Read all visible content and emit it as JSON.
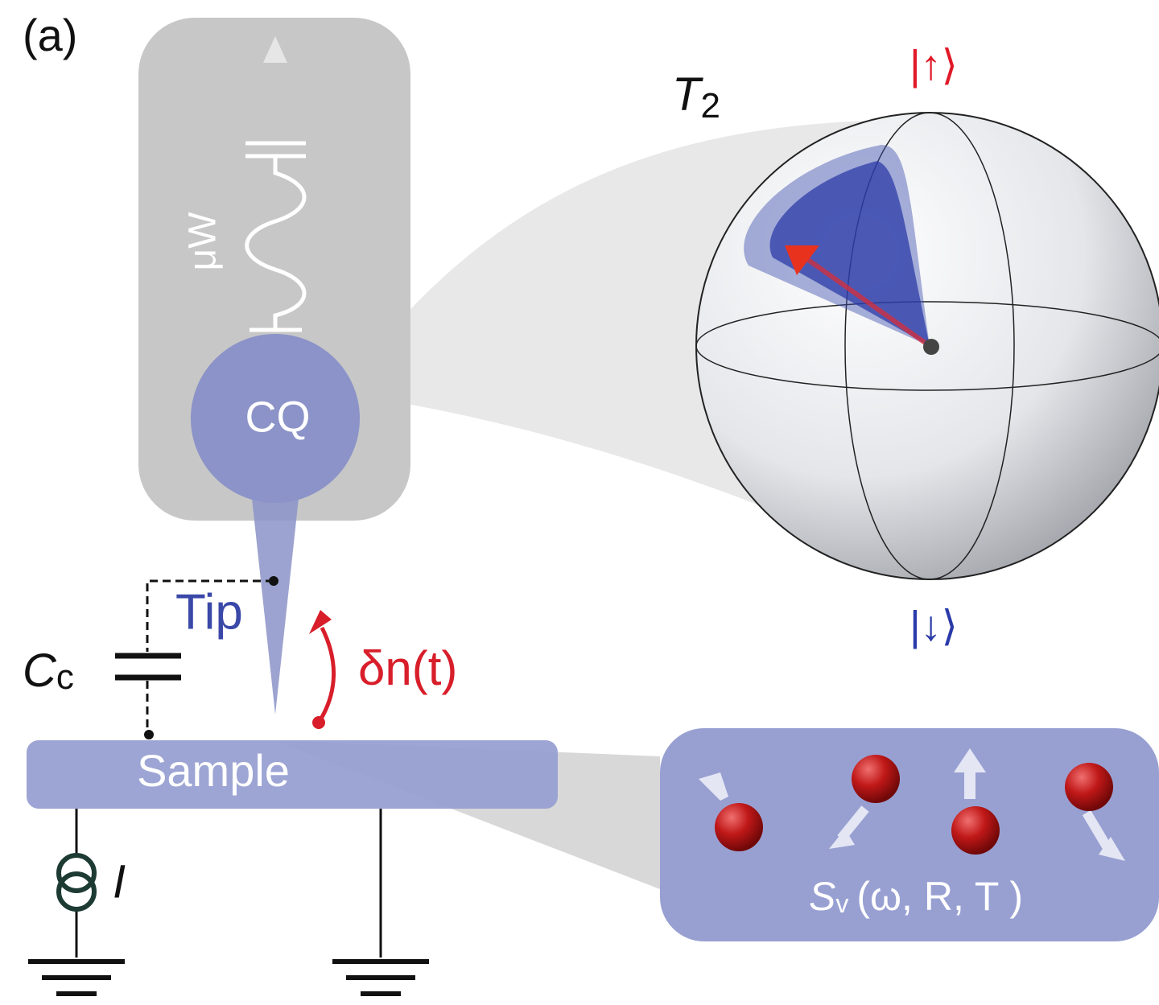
{
  "panel_label": "(a)",
  "probe": {
    "microwave": "μW",
    "qubit": "CQ",
    "tip": "Tip",
    "coupling_capacitor": {
      "symbol": "C",
      "subscript": "c"
    },
    "density_fluctuation": "δn(t)",
    "sample": "Sample",
    "current_source": "I"
  },
  "bloch_sphere": {
    "decoherence": {
      "symbol": "T",
      "subscript": "2"
    },
    "up_state": "|↑⟩",
    "down_state": "|↓⟩"
  },
  "noise_panel": {
    "symbol": "S",
    "subscript": "v",
    "arguments": "(ω, R, T )"
  }
}
